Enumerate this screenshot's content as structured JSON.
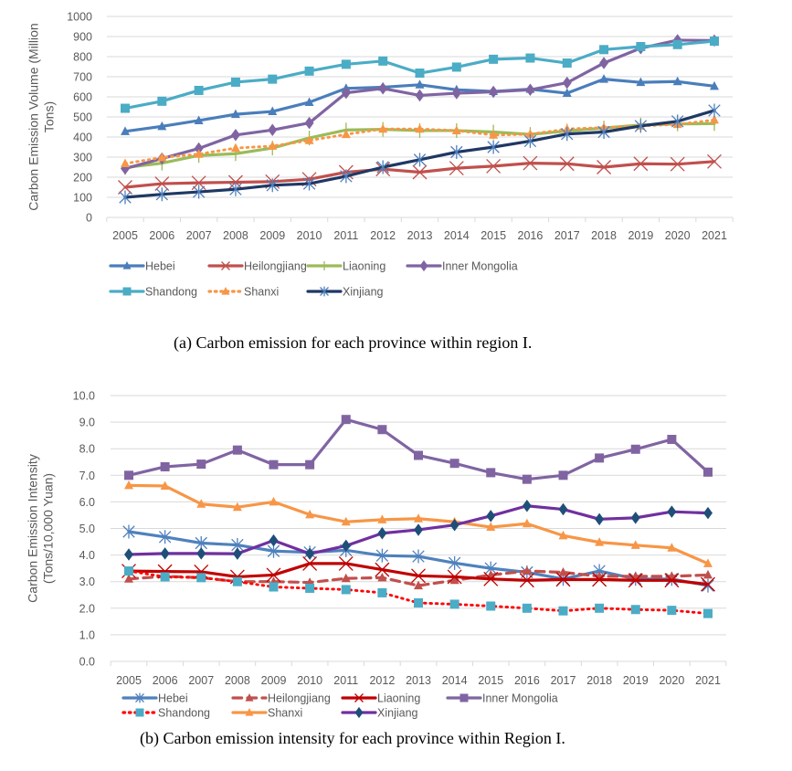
{
  "chart_data": [
    {
      "type": "line",
      "title": "",
      "caption": "(a) Carbon emission for each province within region I.",
      "xlabel": "",
      "ylabel_lines": [
        "Carbon Emission Volume (Million",
        "Tons)"
      ],
      "ylabel": "Carbon Emission Volume (Million Tons)",
      "ylim": [
        0,
        1000
      ],
      "yticks": [
        0,
        100,
        200,
        300,
        400,
        500,
        600,
        700,
        800,
        900,
        1000
      ],
      "ytick_labels": [
        "0",
        "100",
        "200",
        "300",
        "400",
        "500",
        "600",
        "700",
        "800",
        "900",
        "1000"
      ],
      "grid": true,
      "legend_position": "bottom",
      "x": [
        "2005",
        "2006",
        "2007",
        "2008",
        "2009",
        "2010",
        "2011",
        "2012",
        "2013",
        "2014",
        "2015",
        "2016",
        "2017",
        "2018",
        "2019",
        "2020",
        "2021"
      ],
      "series": [
        {
          "name": "Hebei",
          "color": "#4a7ebb",
          "marker": "triangle",
          "dash": "solid",
          "values": [
            428,
            453,
            482,
            513,
            527,
            573,
            642,
            648,
            660,
            635,
            627,
            638,
            618,
            688,
            672,
            676,
            653
          ]
        },
        {
          "name": "Heilongjiang",
          "color": "#c0504d",
          "marker": "x",
          "dash": "solid",
          "values": [
            150,
            168,
            172,
            175,
            178,
            190,
            225,
            240,
            225,
            245,
            255,
            270,
            267,
            250,
            267,
            265,
            278
          ]
        },
        {
          "name": "Liaoning",
          "color": "#9bbb59",
          "marker": "plus",
          "dash": "solid",
          "values": [
            248,
            270,
            308,
            317,
            345,
            395,
            435,
            438,
            432,
            432,
            425,
            413,
            430,
            445,
            460,
            465,
            467
          ]
        },
        {
          "name": "Inner Mongolia",
          "color": "#8064a2",
          "marker": "diamond",
          "dash": "solid",
          "values": [
            243,
            293,
            343,
            410,
            435,
            470,
            620,
            642,
            607,
            618,
            625,
            635,
            670,
            768,
            842,
            882,
            880
          ]
        },
        {
          "name": "Shandong",
          "color": "#4bacc6",
          "marker": "square",
          "dash": "solid",
          "values": [
            543,
            578,
            632,
            673,
            688,
            728,
            762,
            778,
            718,
            748,
            787,
            793,
            768,
            835,
            850,
            860,
            877
          ]
        },
        {
          "name": "Shanxi",
          "color": "#f79646",
          "marker": "triangle",
          "dash": "dotted",
          "values": [
            268,
            298,
            315,
            345,
            355,
            383,
            413,
            440,
            440,
            432,
            410,
            414,
            440,
            447,
            455,
            463,
            485
          ]
        },
        {
          "name": "Xinjiang",
          "color": "#1f3864",
          "marker": "asterisk",
          "dash": "solid",
          "values": [
            100,
            115,
            127,
            140,
            160,
            168,
            205,
            250,
            287,
            325,
            350,
            380,
            415,
            425,
            455,
            478,
            532
          ]
        }
      ]
    },
    {
      "type": "line",
      "title": "",
      "caption": "(b) Carbon emission intensity for each province within Region I.",
      "xlabel": "",
      "ylabel_lines": [
        "Carbon Emission Intensity",
        "(Tons/10,000 Yuan)"
      ],
      "ylabel": "Carbon Emission Intensity (Tons/10,000 Yuan)",
      "ylim": [
        0,
        10
      ],
      "yticks": [
        0,
        1,
        2,
        3,
        4,
        5,
        6,
        7,
        8,
        9,
        10
      ],
      "ytick_labels": [
        "0.0",
        "1.0",
        "2.0",
        "3.0",
        "4.0",
        "5.0",
        "6.0",
        "7.0",
        "8.0",
        "9.0",
        "10.0"
      ],
      "grid": true,
      "legend_position": "bottom",
      "x": [
        "2005",
        "2006",
        "2007",
        "2008",
        "2009",
        "2010",
        "2011",
        "2012",
        "2013",
        "2014",
        "2015",
        "2016",
        "2017",
        "2018",
        "2019",
        "2020",
        "2021"
      ],
      "series": [
        {
          "name": "Hebei",
          "color": "#4f81bd",
          "marker": "asterisk",
          "dash": "solid",
          "values": [
            4.88,
            4.68,
            4.45,
            4.38,
            4.15,
            4.1,
            4.18,
            3.98,
            3.95,
            3.7,
            3.5,
            3.35,
            3.1,
            3.4,
            3.1,
            3.1,
            2.85
          ]
        },
        {
          "name": "Heilongjiang",
          "color": "#c0504d",
          "marker": "triangle",
          "dash": "dashed",
          "values": [
            3.1,
            3.2,
            3.15,
            3.0,
            3.0,
            2.97,
            3.12,
            3.15,
            2.85,
            3.05,
            3.25,
            3.4,
            3.35,
            3.2,
            3.2,
            3.2,
            3.25
          ]
        },
        {
          "name": "Liaoning",
          "color": "#c00000",
          "marker": "x",
          "dash": "solid",
          "values": [
            3.4,
            3.38,
            3.37,
            3.18,
            3.25,
            3.68,
            3.68,
            3.45,
            3.22,
            3.18,
            3.1,
            3.05,
            3.08,
            3.08,
            3.05,
            3.05,
            2.9
          ]
        },
        {
          "name": "Inner Mongolia",
          "color": "#8064a2",
          "marker": "square",
          "dash": "solid",
          "values": [
            7.0,
            7.32,
            7.42,
            7.95,
            7.4,
            7.4,
            9.1,
            8.72,
            7.75,
            7.45,
            7.1,
            6.85,
            7.0,
            7.65,
            7.98,
            8.35,
            7.12
          ]
        },
        {
          "name": "Shandong",
          "color": "#ff0000",
          "marker_color": "#4bacc6",
          "marker": "square",
          "dash": "dotted",
          "values": [
            3.4,
            3.18,
            3.15,
            3.0,
            2.8,
            2.75,
            2.7,
            2.58,
            2.2,
            2.15,
            2.08,
            2.0,
            1.9,
            2.0,
            1.95,
            1.92,
            1.8
          ]
        },
        {
          "name": "Shanxi",
          "color": "#f79646",
          "marker": "triangle",
          "dash": "solid",
          "values": [
            6.62,
            6.6,
            5.92,
            5.8,
            6.0,
            5.52,
            5.25,
            5.33,
            5.37,
            5.25,
            5.05,
            5.18,
            4.73,
            4.48,
            4.37,
            4.27,
            3.68
          ]
        },
        {
          "name": "Xinjiang",
          "color": "#7030a0",
          "marker_color": "#1f4e79",
          "marker": "diamond",
          "dash": "solid",
          "values": [
            4.02,
            4.06,
            4.06,
            4.05,
            4.55,
            4.05,
            4.35,
            4.82,
            4.95,
            5.13,
            5.47,
            5.85,
            5.72,
            5.35,
            5.4,
            5.63,
            5.58
          ]
        }
      ]
    }
  ]
}
